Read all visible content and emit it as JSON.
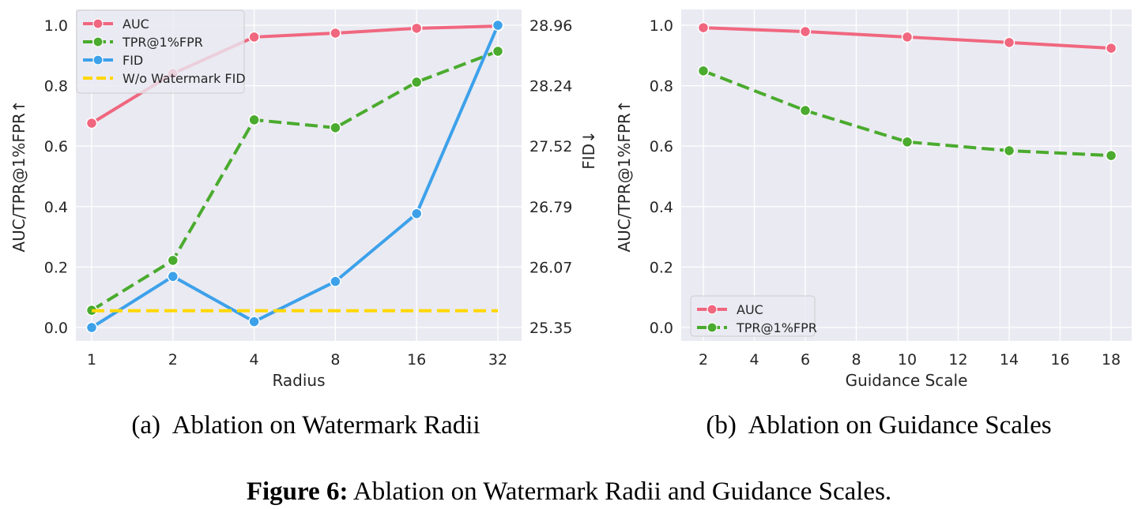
{
  "chart_data": [
    {
      "type": "line",
      "caption": "(a)  Ablation on Watermark Radii",
      "xlabel": "Radius",
      "ylabel": "AUC/TPR@1%FPR↑",
      "y2label": "FID↓",
      "categories": [
        "1",
        "2",
        "4",
        "8",
        "16",
        "32"
      ],
      "ylim": [
        0,
        1
      ],
      "yticks": [
        "0.0",
        "0.2",
        "0.4",
        "0.6",
        "0.8",
        "1.0"
      ],
      "y2lim": [
        25.35,
        28.96
      ],
      "y2ticks": [
        "25.35",
        "26.07",
        "26.79",
        "27.52",
        "28.24",
        "28.96"
      ],
      "grid": true,
      "legend_position": "top-left",
      "series": [
        {
          "name": "AUC",
          "axis": "left",
          "color": "#f0677f",
          "style": "solid",
          "marker": true,
          "values": [
            0.676,
            0.84,
            0.961,
            0.974,
            0.99,
            0.997
          ]
        },
        {
          "name": "TPR@1%FPR",
          "axis": "left",
          "color": "#4aab2e",
          "style": "dashed",
          "marker": true,
          "values": [
            0.057,
            0.222,
            0.687,
            0.661,
            0.812,
            0.914
          ]
        },
        {
          "name": "FID",
          "axis": "right",
          "color": "#3da1ea",
          "style": "solid",
          "marker": true,
          "values": [
            25.35,
            25.96,
            25.42,
            25.9,
            26.71,
            28.96
          ]
        },
        {
          "name": "W/o Watermark FID",
          "axis": "right",
          "color": "#ffd700",
          "style": "dashed",
          "marker": false,
          "values": [
            25.55,
            25.55,
            25.55,
            25.55,
            25.55,
            25.55
          ]
        }
      ]
    },
    {
      "type": "line",
      "caption": "(b)  Ablation on Guidance Scales",
      "xlabel": "Guidance Scale",
      "ylabel": "AUC/TPR@1%FPR↑",
      "x": [
        2,
        6,
        10,
        14,
        18
      ],
      "xlim": [
        2,
        18
      ],
      "xticks": [
        "2",
        "4",
        "6",
        "8",
        "10",
        "12",
        "14",
        "16",
        "18"
      ],
      "ylim": [
        0,
        1
      ],
      "yticks": [
        "0.0",
        "0.2",
        "0.4",
        "0.6",
        "0.8",
        "1.0"
      ],
      "grid": true,
      "legend_position": "bottom-left",
      "series": [
        {
          "name": "AUC",
          "color": "#f0677f",
          "style": "solid",
          "marker": true,
          "values": [
            0.992,
            0.979,
            0.961,
            0.943,
            0.924
          ]
        },
        {
          "name": "TPR@1%FPR",
          "color": "#4aab2e",
          "style": "dashed",
          "marker": true,
          "values": [
            0.849,
            0.718,
            0.614,
            0.585,
            0.569
          ]
        }
      ]
    }
  ],
  "figure_caption": {
    "label": "Figure 6:",
    "text": " Ablation on Watermark Radii and Guidance Scales."
  }
}
